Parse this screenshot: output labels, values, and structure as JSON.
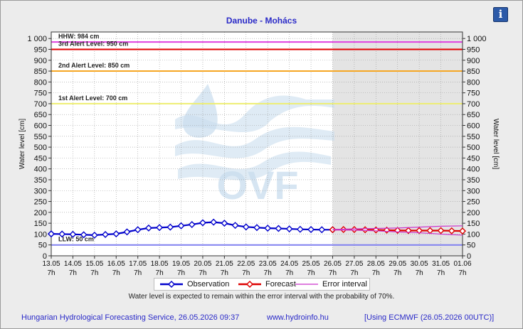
{
  "header": {
    "title": "Danube - Mohács",
    "info_icon": "i"
  },
  "chart_data": {
    "type": "line",
    "title": "Danube - Mohács",
    "ylabel_left": "Water level [cm]",
    "ylabel_right": "Water level [cm]",
    "ylim": [
      0,
      1030
    ],
    "y_ticks": [
      0,
      50,
      100,
      150,
      200,
      250,
      300,
      350,
      400,
      450,
      500,
      550,
      600,
      650,
      700,
      750,
      800,
      850,
      900,
      950,
      1000
    ],
    "y_tick_labels": [
      "0",
      "50",
      "100",
      "150",
      "200",
      "250",
      "300",
      "350",
      "400",
      "450",
      "500",
      "550",
      "600",
      "650",
      "700",
      "750",
      "800",
      "850",
      "900",
      "950",
      "1 000"
    ],
    "x_ticks": [
      "13.05",
      "14.05",
      "15.05",
      "16.05",
      "17.05",
      "18.05",
      "19.05",
      "20.05",
      "21.05",
      "22.05",
      "23.05",
      "24.05",
      "25.05",
      "26.05",
      "27.05",
      "28.05",
      "29.05",
      "30.05",
      "31.05",
      "01.06"
    ],
    "x_tick_sublabel": "7h",
    "grid": true,
    "reference_lines": [
      {
        "label": "HHW: 984 cm",
        "value": 984,
        "color": "#e040e0"
      },
      {
        "label": "3rd Alert Level: 950 cm",
        "value": 950,
        "color": "#e00000"
      },
      {
        "label": "2nd Alert Level: 850 cm",
        "value": 850,
        "color": "#f5a623"
      },
      {
        "label": "1st Alert Level: 700 cm",
        "value": 700,
        "color": "#eeee70"
      },
      {
        "label": "LLW: 50 cm",
        "value": 50,
        "color": "#8080f0"
      }
    ],
    "forecast_start_day": 13,
    "series": [
      {
        "name": "Observation",
        "color": "#0000cc",
        "x_days": [
          -0.5,
          0,
          0.5,
          1,
          1.5,
          2,
          2.5,
          3,
          3.5,
          4,
          4.5,
          5,
          5.5,
          6,
          6.5,
          7,
          7.5,
          8,
          8.5,
          9,
          9.5,
          10,
          10.5,
          11,
          11.5,
          12,
          12.5,
          13
        ],
        "values": [
          101,
          101,
          100,
          99,
          97,
          95,
          98,
          101,
          110,
          120,
          128,
          130,
          132,
          138,
          144,
          152,
          155,
          150,
          140,
          133,
          130,
          127,
          126,
          124,
          122,
          121,
          120,
          120
        ]
      },
      {
        "name": "Forecast",
        "color": "#dd0000",
        "x_days": [
          13,
          13.5,
          14,
          14.5,
          15,
          15.5,
          16,
          16.5,
          17,
          17.5,
          18,
          18.5,
          19
        ],
        "values": [
          120,
          121,
          121,
          120,
          119,
          118,
          117,
          116,
          116,
          116,
          116,
          115,
          114
        ]
      },
      {
        "name": "Error interval",
        "color": "#cc33cc",
        "upper_x_days": [
          13,
          14,
          15,
          16,
          17,
          18,
          19
        ],
        "upper_values": [
          121,
          124,
          126,
          128,
          132,
          136,
          138
        ],
        "lower_x_days": [
          13,
          14,
          15,
          16,
          17,
          18,
          19
        ],
        "lower_values": [
          119,
          118,
          115,
          110,
          106,
          100,
          95
        ]
      }
    ]
  },
  "legend": {
    "observation": "Observation",
    "forecast": "Forecast",
    "error_interval": "Error interval"
  },
  "watermark": {
    "text": "OVF"
  },
  "note": "Water level is expected to remain within the error interval with the probability of 70%.",
  "footer": {
    "service": "Hungarian Hydrological Forecasting Service, 26.05.2026 09:37",
    "website": "www.hydroinfo.hu",
    "model": "[Using ECMWF (26.05.2026  00UTC)]"
  }
}
